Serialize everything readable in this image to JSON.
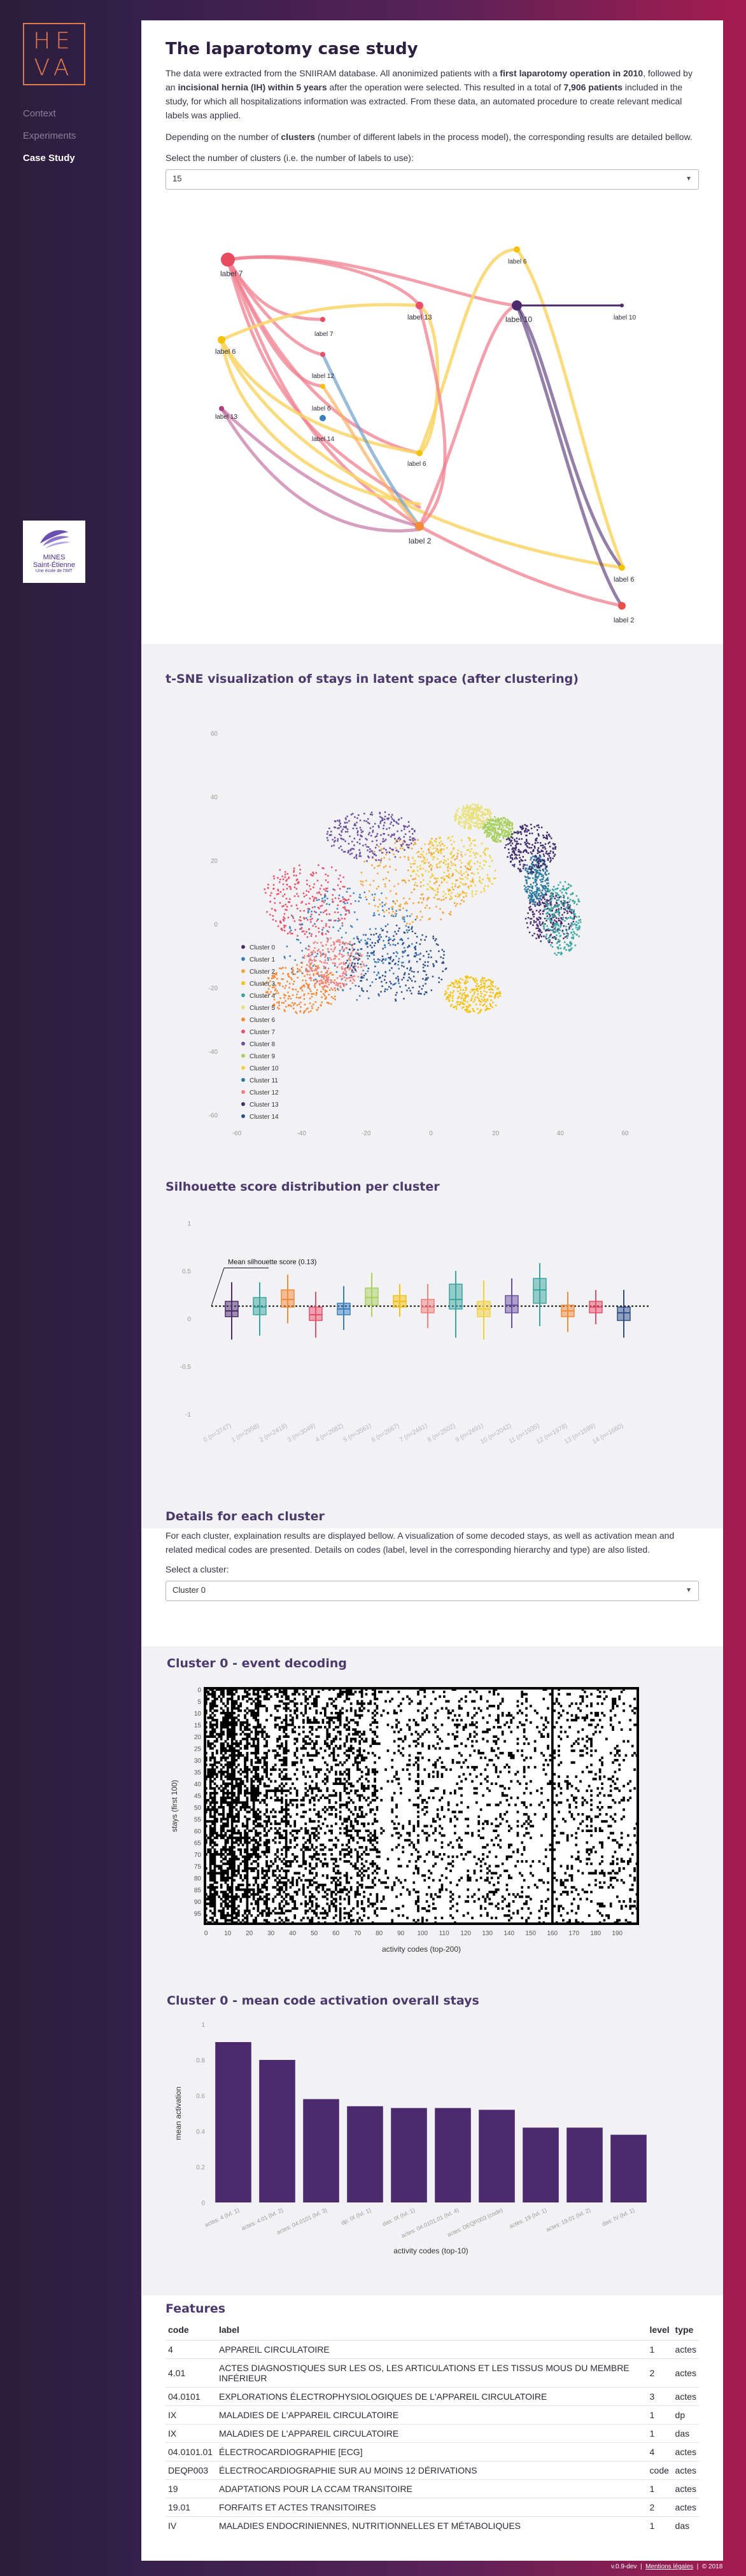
{
  "sidebar": {
    "logo": [
      "HE",
      "VA"
    ],
    "nav": [
      {
        "label": "Context"
      },
      {
        "label": "Experiments"
      },
      {
        "label": "Case Study"
      }
    ],
    "partner": {
      "name1": "MINES",
      "name2": "Saint-Étienne",
      "tagline": "Une école de l'IMT"
    }
  },
  "intro": {
    "title": "The laparotomy case study",
    "p1_a": "The data were extracted from the SNIIRAM database. All anonimized patients with a ",
    "p1_b": "first laparotomy operation in 2010",
    "p1_c": ", followed by an ",
    "p1_d": "incisional hernia (IH) within 5 years",
    "p1_e": " after the operation were selected. This resulted in a total of ",
    "p1_f": "7,906 patients",
    "p1_g": " included in the study, for which all hospitalizations information was extracted. From these data, an automated procedure to create relevant medical labels was applied.",
    "p2_a": "Depending on the number of ",
    "p2_b": "clusters",
    "p2_c": " (number of different labels in the process model), the corresponding results are detailed bellow.",
    "select_label": "Select the number of clusters (i.e. the number of labels to use):",
    "select_value": "15"
  },
  "process_model": {
    "labels": [
      "label 7",
      "label 6",
      "label 13",
      "label 12",
      "label 6",
      "label 14",
      "label 13",
      "label 6",
      "label 10",
      "label 10",
      "label 7",
      "label 6",
      "label 2",
      "label 6",
      "label 2"
    ]
  },
  "tsne": {
    "title": "t-SNE visualization of stays in latent space (after clustering)",
    "x_ticks": [
      "-60",
      "-40",
      "-20",
      "0",
      "20",
      "40",
      "60"
    ],
    "y_ticks": [
      "60",
      "40",
      "20",
      "0",
      "-20",
      "-40",
      "-60"
    ],
    "legend": [
      "Cluster 0",
      "Cluster 1",
      "Cluster 2",
      "Cluster 3",
      "Cluster 4",
      "Cluster 5",
      "Cluster 6",
      "Cluster 7",
      "Cluster 8",
      "Cluster 9",
      "Cluster 10",
      "Cluster 11",
      "Cluster 12",
      "Cluster 13",
      "Cluster 14"
    ],
    "colors": [
      "#4b2a6e",
      "#3a7fbf",
      "#f2a33a",
      "#f4c20d",
      "#3aa6a0",
      "#e8e07a",
      "#f28a3a",
      "#e8506a",
      "#6a4fa0",
      "#a8d060",
      "#f0d040",
      "#2c7a9e",
      "#f08080",
      "#3c2d6a",
      "#2f4f8a"
    ]
  },
  "chart_data": [
    {
      "type": "box",
      "title": "Silhouette score distribution per cluster",
      "annotation": "Mean silhouette score (0.13)",
      "mean": 0.13,
      "ylim": [
        -1,
        1
      ],
      "y_ticks": [
        "1",
        "0.5",
        "0",
        "-0.5",
        "-1"
      ],
      "categories": [
        "0 (n=3747)",
        "1 (n=2958)",
        "2 (n=2418)",
        "3 (n=3049)",
        "4 (n=2682)",
        "5 (n=3561)",
        "6 (n=2667)",
        "7 (n=2481)",
        "8 (n=2502)",
        "9 (n=2491)",
        "10 (n=2042)",
        "11 (n=1935)",
        "12 (n=1978)",
        "13 (n=1599)",
        "14 (n=1660)"
      ],
      "series": [
        {
          "median": 0.08,
          "q1": 0.02,
          "q3": 0.18,
          "min": -0.22,
          "max": 0.38
        },
        {
          "median": 0.12,
          "q1": 0.04,
          "q3": 0.22,
          "min": -0.18,
          "max": 0.38
        },
        {
          "median": 0.2,
          "q1": 0.12,
          "q3": 0.3,
          "min": -0.05,
          "max": 0.46
        },
        {
          "median": 0.04,
          "q1": -0.02,
          "q3": 0.12,
          "min": -0.2,
          "max": 0.28
        },
        {
          "median": 0.1,
          "q1": 0.04,
          "q3": 0.16,
          "min": -0.12,
          "max": 0.34
        },
        {
          "median": 0.22,
          "q1": 0.14,
          "q3": 0.32,
          "min": 0.02,
          "max": 0.48
        },
        {
          "median": 0.18,
          "q1": 0.12,
          "q3": 0.24,
          "min": 0.02,
          "max": 0.36
        },
        {
          "median": 0.12,
          "q1": 0.06,
          "q3": 0.2,
          "min": -0.1,
          "max": 0.36
        },
        {
          "median": 0.2,
          "q1": 0.1,
          "q3": 0.36,
          "min": -0.2,
          "max": 0.5
        },
        {
          "median": 0.1,
          "q1": 0.02,
          "q3": 0.18,
          "min": -0.22,
          "max": 0.4
        },
        {
          "median": 0.14,
          "q1": 0.06,
          "q3": 0.24,
          "min": -0.1,
          "max": 0.42
        },
        {
          "median": 0.3,
          "q1": 0.16,
          "q3": 0.42,
          "min": -0.08,
          "max": 0.58
        },
        {
          "median": 0.08,
          "q1": 0.02,
          "q3": 0.14,
          "min": -0.14,
          "max": 0.28
        },
        {
          "median": 0.12,
          "q1": 0.06,
          "q3": 0.18,
          "min": -0.06,
          "max": 0.3
        },
        {
          "median": 0.06,
          "q1": -0.02,
          "q3": 0.12,
          "min": -0.2,
          "max": 0.3
        }
      ],
      "colors": [
        "#4b2a6e",
        "#3aa6a0",
        "#f28a3a",
        "#e8506a",
        "#3a7fbf",
        "#a8d060",
        "#f4c20d",
        "#f08080",
        "#3aa6a0",
        "#f0d040",
        "#6a4fa0",
        "#3aa6a0",
        "#f28a3a",
        "#e8506a",
        "#2f4f8a"
      ]
    },
    {
      "type": "bar",
      "title": "Cluster 0 - mean code activation overall stays",
      "xlabel": "activity codes (top-10)",
      "ylabel": "mean activation",
      "ylim": [
        0,
        1
      ],
      "y_ticks": [
        "0",
        "0.2",
        "0.4",
        "0.6",
        "0.8",
        "1"
      ],
      "categories": [
        "actes: 4 (lvl. 1)",
        "actes: 4.01 (lvl. 2)",
        "actes: 04.0101 (lvl. 3)",
        "dp: IX (lvl. 1)",
        "das: IX (lvl. 1)",
        "actes: 04.0101.01 (lvl. 4)",
        "actes: DEQP003 (code)",
        "actes: 19 (lvl. 1)",
        "actes: 19.01 (lvl. 2)",
        "das: IV (lvl. 1)"
      ],
      "values": [
        0.9,
        0.8,
        0.58,
        0.54,
        0.53,
        0.53,
        0.52,
        0.42,
        0.42,
        0.38
      ],
      "color": "#4b2a6e"
    }
  ],
  "details": {
    "title": "Details for each cluster",
    "paragraph": "For each cluster, explaination results are displayed bellow. A visualization of some decoded stays, as well as activation mean and related medical codes are presented. Details on codes (label, level in the corresponding hierarchy and type) are also listed.",
    "select_label": "Select a cluster:",
    "select_value": "Cluster 0"
  },
  "decoding": {
    "title": "Cluster 0 - event decoding",
    "xlabel": "activity codes (top-200)",
    "ylabel": "stays (first 100)",
    "x_ticks": [
      "0",
      "10",
      "20",
      "30",
      "40",
      "50",
      "60",
      "70",
      "80",
      "90",
      "100",
      "110",
      "120",
      "130",
      "140",
      "150",
      "160",
      "170",
      "180",
      "190"
    ],
    "y_ticks": [
      "0",
      "5",
      "10",
      "15",
      "20",
      "25",
      "30",
      "35",
      "40",
      "45",
      "50",
      "55",
      "60",
      "65",
      "70",
      "75",
      "80",
      "85",
      "90",
      "95"
    ]
  },
  "features": {
    "title": "Features",
    "headers": [
      "code",
      "label",
      "level",
      "type"
    ],
    "rows": [
      [
        "4",
        "APPAREIL CIRCULATOIRE",
        "1",
        "actes"
      ],
      [
        "4.01",
        "ACTES DIAGNOSTIQUES SUR LES OS, LES ARTICULATIONS ET LES TISSUS MOUS DU MEMBRE INFÉRIEUR",
        "2",
        "actes"
      ],
      [
        "04.0101",
        "EXPLORATIONS ÉLECTROPHYSIOLOGIQUES DE L'APPAREIL CIRCULATOIRE",
        "3",
        "actes"
      ],
      [
        "IX",
        "MALADIES DE L'APPAREIL CIRCULATOIRE",
        "1",
        "dp"
      ],
      [
        "IX",
        "MALADIES DE L'APPAREIL CIRCULATOIRE",
        "1",
        "das"
      ],
      [
        "04.0101.01",
        "ÉLECTROCARDIOGRAPHIE [ECG]",
        "4",
        "actes"
      ],
      [
        "DEQP003",
        "ÉLECTROCARDIOGRAPHIE SUR AU MOINS 12 DÉRIVATIONS",
        "code",
        "actes"
      ],
      [
        "19",
        "ADAPTATIONS POUR LA CCAM TRANSITOIRE",
        "1",
        "actes"
      ],
      [
        "19.01",
        "FORFAITS ET ACTES TRANSITOIRES",
        "2",
        "actes"
      ],
      [
        "IV",
        "MALADIES ENDOCRINIENNES, NUTRITIONNELLES ET MÉTABOLIQUES",
        "1",
        "das"
      ]
    ]
  },
  "footer": {
    "version": "v.0.9-dev",
    "link": "Mentions légales",
    "copyright": "© 2018"
  }
}
